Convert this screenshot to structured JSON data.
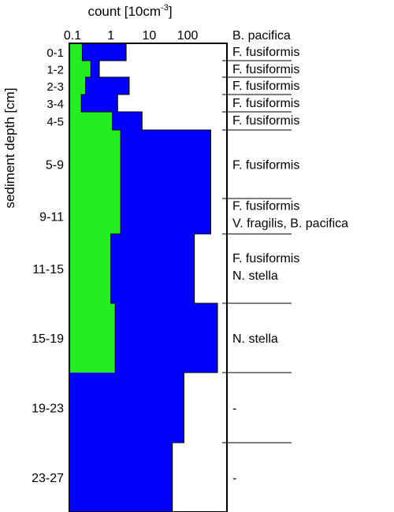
{
  "chart_data": {
    "type": "area",
    "orientation": "horizontal",
    "x_scale": "log",
    "xlabel": "count [10cm",
    "xlabel_sup": "-3",
    "xlabel_end": "]",
    "ylabel": "sediment depth [cm]",
    "xlim": [
      0.1,
      1000
    ],
    "x_ticks": [
      {
        "value": 0.1,
        "label": "0.1"
      },
      {
        "value": 1,
        "label": "1"
      },
      {
        "value": 10,
        "label": "10"
      },
      {
        "value": 100,
        "label": "100"
      }
    ],
    "intervals": [
      {
        "label": "0-1",
        "top": 0,
        "bottom": 1
      },
      {
        "label": "1-2",
        "top": 1,
        "bottom": 2
      },
      {
        "label": "2-3",
        "top": 2,
        "bottom": 3
      },
      {
        "label": "3-4",
        "top": 3,
        "bottom": 4
      },
      {
        "label": "4-5",
        "top": 4,
        "bottom": 5
      },
      {
        "label": "5-9",
        "top": 5,
        "bottom": 9
      },
      {
        "label": "9-11",
        "top": 9,
        "bottom": 11
      },
      {
        "label": "11-15",
        "top": 11,
        "bottom": 15
      },
      {
        "label": "15-19",
        "top": 15,
        "bottom": 19
      },
      {
        "label": "19-23",
        "top": 19,
        "bottom": 23
      },
      {
        "label": "23-27",
        "top": 23,
        "bottom": 27
      }
    ],
    "series": [
      {
        "key": "total",
        "color": "#0000ff",
        "values": [
          2.5,
          0.5,
          3,
          1.5,
          6.5,
          400,
          400,
          150,
          600,
          80,
          40
        ]
      },
      {
        "key": "green",
        "color": "#22ee22",
        "values": [
          0.18,
          0.3,
          0.22,
          0.17,
          1.1,
          1.8,
          1.8,
          1.0,
          1.3,
          null,
          null
        ]
      }
    ],
    "species_header": "B. pacifica",
    "species_labels": [
      [
        "F. fusiformis"
      ],
      [
        "F. fusiformis"
      ],
      [
        "F. fusiformis"
      ],
      [
        "F. fusiformis"
      ],
      [
        "F. fusiformis"
      ],
      [
        "F. fusiformis"
      ],
      [
        "F. fusiformis",
        "V. fragilis, B. pacifica"
      ],
      [
        "F. fusiformis",
        "N. stella"
      ],
      [
        "N. stella"
      ],
      [
        "-"
      ],
      [
        "-"
      ]
    ]
  }
}
